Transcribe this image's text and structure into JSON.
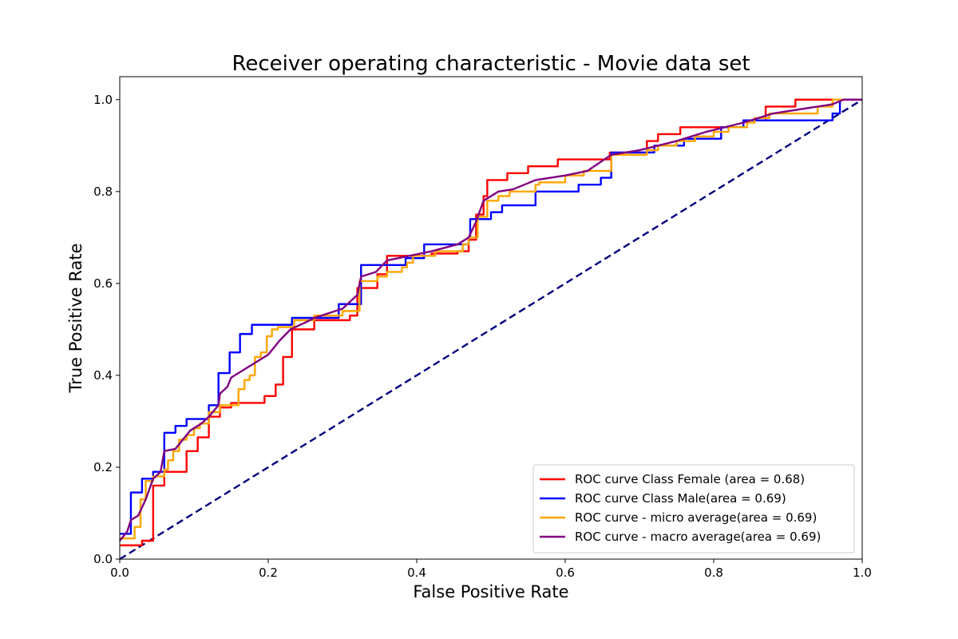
{
  "chart_data": {
    "type": "line",
    "title": "Receiver operating characteristic - Movie data set",
    "xlabel": "False Positive Rate",
    "ylabel": "True Positive Rate",
    "xlim": [
      0.0,
      1.0
    ],
    "ylim": [
      0.0,
      1.05
    ],
    "xticks": [
      "0.0",
      "0.2",
      "0.4",
      "0.6",
      "0.8",
      "1.0"
    ],
    "yticks": [
      "0.0",
      "0.2",
      "0.4",
      "0.6",
      "0.8",
      "1.0"
    ],
    "legend_position": "lower-right",
    "series": [
      {
        "name": "ROC curve Class Female (area = 0.68)",
        "color": "#ff0000",
        "style": "solid",
        "points": [
          [
            0,
            0.03
          ],
          [
            0.03,
            0.03
          ],
          [
            0.03,
            0.04
          ],
          [
            0.045,
            0.04
          ],
          [
            0.045,
            0.16
          ],
          [
            0.06,
            0.16
          ],
          [
            0.06,
            0.19
          ],
          [
            0.09,
            0.19
          ],
          [
            0.09,
            0.235
          ],
          [
            0.105,
            0.235
          ],
          [
            0.105,
            0.265
          ],
          [
            0.12,
            0.265
          ],
          [
            0.12,
            0.31
          ],
          [
            0.135,
            0.31
          ],
          [
            0.135,
            0.33
          ],
          [
            0.15,
            0.33
          ],
          [
            0.15,
            0.34
          ],
          [
            0.195,
            0.34
          ],
          [
            0.195,
            0.355
          ],
          [
            0.21,
            0.355
          ],
          [
            0.21,
            0.38
          ],
          [
            0.22,
            0.38
          ],
          [
            0.22,
            0.44
          ],
          [
            0.232,
            0.44
          ],
          [
            0.232,
            0.5
          ],
          [
            0.262,
            0.5
          ],
          [
            0.262,
            0.52
          ],
          [
            0.31,
            0.52
          ],
          [
            0.31,
            0.53
          ],
          [
            0.32,
            0.53
          ],
          [
            0.32,
            0.59
          ],
          [
            0.347,
            0.59
          ],
          [
            0.347,
            0.62
          ],
          [
            0.36,
            0.62
          ],
          [
            0.36,
            0.66
          ],
          [
            0.42,
            0.66
          ],
          [
            0.42,
            0.665
          ],
          [
            0.455,
            0.665
          ],
          [
            0.455,
            0.67
          ],
          [
            0.47,
            0.67
          ],
          [
            0.47,
            0.695
          ],
          [
            0.48,
            0.695
          ],
          [
            0.48,
            0.75
          ],
          [
            0.49,
            0.75
          ],
          [
            0.49,
            0.79
          ],
          [
            0.495,
            0.79
          ],
          [
            0.495,
            0.825
          ],
          [
            0.522,
            0.825
          ],
          [
            0.522,
            0.84
          ],
          [
            0.55,
            0.84
          ],
          [
            0.55,
            0.855
          ],
          [
            0.59,
            0.855
          ],
          [
            0.59,
            0.87
          ],
          [
            0.66,
            0.87
          ],
          [
            0.66,
            0.885
          ],
          [
            0.71,
            0.885
          ],
          [
            0.71,
            0.91
          ],
          [
            0.725,
            0.91
          ],
          [
            0.725,
            0.925
          ],
          [
            0.755,
            0.925
          ],
          [
            0.755,
            0.94
          ],
          [
            0.84,
            0.94
          ],
          [
            0.84,
            0.955
          ],
          [
            0.87,
            0.955
          ],
          [
            0.87,
            0.985
          ],
          [
            0.91,
            0.985
          ],
          [
            0.91,
            1.0
          ],
          [
            1.0,
            1.0
          ]
        ]
      },
      {
        "name": "ROC curve Class Male(area = 0.69)",
        "color": "#0000ff",
        "style": "solid",
        "points": [
          [
            0,
            0.055
          ],
          [
            0.015,
            0.055
          ],
          [
            0.015,
            0.145
          ],
          [
            0.03,
            0.145
          ],
          [
            0.03,
            0.175
          ],
          [
            0.045,
            0.175
          ],
          [
            0.045,
            0.19
          ],
          [
            0.06,
            0.19
          ],
          [
            0.06,
            0.275
          ],
          [
            0.075,
            0.275
          ],
          [
            0.075,
            0.29
          ],
          [
            0.09,
            0.29
          ],
          [
            0.09,
            0.305
          ],
          [
            0.12,
            0.305
          ],
          [
            0.12,
            0.335
          ],
          [
            0.133,
            0.335
          ],
          [
            0.133,
            0.405
          ],
          [
            0.148,
            0.405
          ],
          [
            0.148,
            0.45
          ],
          [
            0.162,
            0.45
          ],
          [
            0.162,
            0.49
          ],
          [
            0.178,
            0.49
          ],
          [
            0.178,
            0.51
          ],
          [
            0.232,
            0.51
          ],
          [
            0.232,
            0.525
          ],
          [
            0.295,
            0.525
          ],
          [
            0.295,
            0.555
          ],
          [
            0.325,
            0.555
          ],
          [
            0.325,
            0.64
          ],
          [
            0.385,
            0.64
          ],
          [
            0.385,
            0.655
          ],
          [
            0.41,
            0.655
          ],
          [
            0.41,
            0.685
          ],
          [
            0.47,
            0.685
          ],
          [
            0.47,
            0.7
          ],
          [
            0.472,
            0.7
          ],
          [
            0.472,
            0.74
          ],
          [
            0.5,
            0.74
          ],
          [
            0.5,
            0.755
          ],
          [
            0.515,
            0.755
          ],
          [
            0.515,
            0.77
          ],
          [
            0.56,
            0.77
          ],
          [
            0.56,
            0.8
          ],
          [
            0.618,
            0.8
          ],
          [
            0.618,
            0.815
          ],
          [
            0.648,
            0.815
          ],
          [
            0.648,
            0.83
          ],
          [
            0.662,
            0.83
          ],
          [
            0.662,
            0.885
          ],
          [
            0.72,
            0.885
          ],
          [
            0.72,
            0.9
          ],
          [
            0.76,
            0.9
          ],
          [
            0.76,
            0.915
          ],
          [
            0.81,
            0.915
          ],
          [
            0.81,
            0.94
          ],
          [
            0.84,
            0.94
          ],
          [
            0.84,
            0.955
          ],
          [
            0.96,
            0.955
          ],
          [
            0.96,
            0.97
          ],
          [
            0.97,
            0.97
          ],
          [
            0.97,
            1.0
          ],
          [
            1.0,
            1.0
          ]
        ]
      },
      {
        "name": "ROC curve - micro average(area = 0.69)",
        "color": "#ffa500",
        "style": "solid",
        "points": [
          [
            0,
            0.045
          ],
          [
            0.02,
            0.045
          ],
          [
            0.02,
            0.07
          ],
          [
            0.028,
            0.07
          ],
          [
            0.028,
            0.13
          ],
          [
            0.035,
            0.13
          ],
          [
            0.035,
            0.17
          ],
          [
            0.045,
            0.17
          ],
          [
            0.045,
            0.18
          ],
          [
            0.06,
            0.18
          ],
          [
            0.06,
            0.195
          ],
          [
            0.065,
            0.195
          ],
          [
            0.065,
            0.215
          ],
          [
            0.072,
            0.215
          ],
          [
            0.072,
            0.235
          ],
          [
            0.08,
            0.235
          ],
          [
            0.08,
            0.26
          ],
          [
            0.09,
            0.26
          ],
          [
            0.09,
            0.27
          ],
          [
            0.1,
            0.27
          ],
          [
            0.1,
            0.285
          ],
          [
            0.108,
            0.285
          ],
          [
            0.108,
            0.295
          ],
          [
            0.12,
            0.295
          ],
          [
            0.12,
            0.32
          ],
          [
            0.135,
            0.32
          ],
          [
            0.135,
            0.335
          ],
          [
            0.16,
            0.335
          ],
          [
            0.16,
            0.37
          ],
          [
            0.168,
            0.37
          ],
          [
            0.168,
            0.39
          ],
          [
            0.175,
            0.39
          ],
          [
            0.175,
            0.4
          ],
          [
            0.182,
            0.4
          ],
          [
            0.182,
            0.44
          ],
          [
            0.19,
            0.44
          ],
          [
            0.19,
            0.45
          ],
          [
            0.198,
            0.45
          ],
          [
            0.198,
            0.485
          ],
          [
            0.205,
            0.485
          ],
          [
            0.205,
            0.5
          ],
          [
            0.213,
            0.5
          ],
          [
            0.213,
            0.505
          ],
          [
            0.235,
            0.505
          ],
          [
            0.235,
            0.52
          ],
          [
            0.262,
            0.52
          ],
          [
            0.262,
            0.53
          ],
          [
            0.3,
            0.53
          ],
          [
            0.3,
            0.54
          ],
          [
            0.323,
            0.54
          ],
          [
            0.323,
            0.605
          ],
          [
            0.347,
            0.605
          ],
          [
            0.347,
            0.615
          ],
          [
            0.36,
            0.615
          ],
          [
            0.36,
            0.625
          ],
          [
            0.38,
            0.625
          ],
          [
            0.38,
            0.635
          ],
          [
            0.387,
            0.635
          ],
          [
            0.387,
            0.645
          ],
          [
            0.395,
            0.645
          ],
          [
            0.395,
            0.66
          ],
          [
            0.425,
            0.66
          ],
          [
            0.425,
            0.67
          ],
          [
            0.462,
            0.67
          ],
          [
            0.462,
            0.685
          ],
          [
            0.47,
            0.685
          ],
          [
            0.47,
            0.7
          ],
          [
            0.482,
            0.7
          ],
          [
            0.482,
            0.745
          ],
          [
            0.495,
            0.745
          ],
          [
            0.495,
            0.78
          ],
          [
            0.51,
            0.78
          ],
          [
            0.51,
            0.79
          ],
          [
            0.525,
            0.79
          ],
          [
            0.525,
            0.8
          ],
          [
            0.56,
            0.8
          ],
          [
            0.56,
            0.815
          ],
          [
            0.565,
            0.815
          ],
          [
            0.565,
            0.82
          ],
          [
            0.6,
            0.82
          ],
          [
            0.6,
            0.835
          ],
          [
            0.625,
            0.835
          ],
          [
            0.625,
            0.845
          ],
          [
            0.662,
            0.845
          ],
          [
            0.662,
            0.88
          ],
          [
            0.71,
            0.88
          ],
          [
            0.71,
            0.89
          ],
          [
            0.725,
            0.89
          ],
          [
            0.725,
            0.9
          ],
          [
            0.75,
            0.9
          ],
          [
            0.75,
            0.91
          ],
          [
            0.775,
            0.91
          ],
          [
            0.775,
            0.92
          ],
          [
            0.8,
            0.92
          ],
          [
            0.8,
            0.93
          ],
          [
            0.82,
            0.93
          ],
          [
            0.82,
            0.94
          ],
          [
            0.845,
            0.94
          ],
          [
            0.845,
            0.95
          ],
          [
            0.855,
            0.95
          ],
          [
            0.855,
            0.96
          ],
          [
            0.875,
            0.96
          ],
          [
            0.875,
            0.97
          ],
          [
            0.94,
            0.97
          ],
          [
            0.94,
            0.985
          ],
          [
            0.96,
            0.985
          ],
          [
            0.96,
            1.0
          ],
          [
            1.0,
            1.0
          ]
        ]
      },
      {
        "name": "ROC curve - macro average(area = 0.69)",
        "color": "#800080",
        "style": "solid",
        "points": [
          [
            0,
            0.04
          ],
          [
            0.01,
            0.06
          ],
          [
            0.015,
            0.085
          ],
          [
            0.025,
            0.095
          ],
          [
            0.035,
            0.13
          ],
          [
            0.045,
            0.175
          ],
          [
            0.055,
            0.19
          ],
          [
            0.06,
            0.235
          ],
          [
            0.075,
            0.24
          ],
          [
            0.085,
            0.26
          ],
          [
            0.095,
            0.28
          ],
          [
            0.11,
            0.295
          ],
          [
            0.12,
            0.31
          ],
          [
            0.133,
            0.335
          ],
          [
            0.135,
            0.36
          ],
          [
            0.145,
            0.375
          ],
          [
            0.15,
            0.395
          ],
          [
            0.165,
            0.41
          ],
          [
            0.18,
            0.425
          ],
          [
            0.2,
            0.445
          ],
          [
            0.215,
            0.475
          ],
          [
            0.23,
            0.5
          ],
          [
            0.25,
            0.515
          ],
          [
            0.262,
            0.525
          ],
          [
            0.3,
            0.545
          ],
          [
            0.32,
            0.575
          ],
          [
            0.325,
            0.615
          ],
          [
            0.345,
            0.625
          ],
          [
            0.36,
            0.65
          ],
          [
            0.39,
            0.66
          ],
          [
            0.42,
            0.67
          ],
          [
            0.455,
            0.685
          ],
          [
            0.47,
            0.7
          ],
          [
            0.48,
            0.735
          ],
          [
            0.49,
            0.78
          ],
          [
            0.51,
            0.8
          ],
          [
            0.53,
            0.805
          ],
          [
            0.56,
            0.825
          ],
          [
            0.6,
            0.835
          ],
          [
            0.63,
            0.845
          ],
          [
            0.662,
            0.88
          ],
          [
            0.7,
            0.89
          ],
          [
            0.75,
            0.91
          ],
          [
            0.79,
            0.93
          ],
          [
            0.84,
            0.95
          ],
          [
            0.88,
            0.97
          ],
          [
            0.96,
            0.99
          ],
          [
            0.975,
            1.0
          ],
          [
            1.0,
            1.0
          ]
        ]
      },
      {
        "name": "",
        "color": "#000080",
        "style": "dashed",
        "points": [
          [
            0,
            0
          ],
          [
            1,
            1
          ]
        ]
      }
    ]
  }
}
